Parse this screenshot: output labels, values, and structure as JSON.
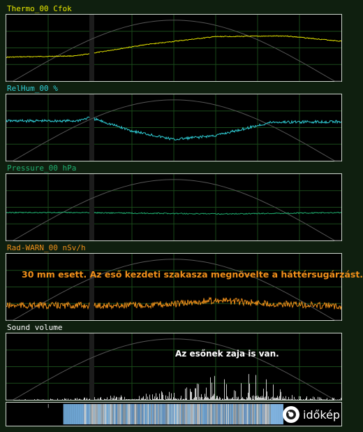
{
  "annotations": {
    "rad": "30 mm esett. Az eső kezdeti szakasza megnövelte a háttérsugárzást.",
    "sound": "Az esőnek zaja is van."
  },
  "logo": {
    "text": "időkép",
    "icon": "camera-lens-icon"
  },
  "colors": {
    "background": "#0f1f0f",
    "panel": "#000000",
    "grid": "#1a4a1a",
    "daylight_curve": "#555555",
    "gap_band": "#1c1c1c",
    "thermo": "#e8e800",
    "relhum": "#30d0d8",
    "pressure": "#20b070",
    "rad": "#f0901a",
    "sound": "#ffffff",
    "rad_annotation": "#f0901a",
    "sound_annotation": "#ffffff"
  },
  "chart_data": [
    {
      "id": "thermo",
      "type": "line",
      "title": "Thermo_00 Cfok",
      "x": [
        0,
        5,
        10,
        15,
        20,
        24
      ],
      "values": [
        0.64,
        0.62,
        0.45,
        0.33,
        0.32,
        0.4
      ],
      "noise": 0.006,
      "grid": true
    },
    {
      "id": "relhum",
      "type": "line",
      "title": "RelHum_00 %",
      "x": [
        0,
        5,
        6,
        9,
        12,
        15,
        19,
        24
      ],
      "values": [
        0.4,
        0.4,
        0.35,
        0.55,
        0.68,
        0.62,
        0.42,
        0.41
      ],
      "noise": 0.02,
      "grid": true
    },
    {
      "id": "pressure",
      "type": "line",
      "title": "Pressure_00 hPa",
      "x": [
        0,
        5,
        10,
        15,
        20,
        24
      ],
      "values": [
        0.58,
        0.58,
        0.59,
        0.6,
        0.59,
        0.58
      ],
      "noise": 0.008,
      "grid": true
    },
    {
      "id": "rad",
      "type": "line",
      "title": "Rad-WARN_00 nSv/h",
      "x": [
        0,
        5,
        8,
        12,
        15,
        18,
        20,
        24
      ],
      "values": [
        0.78,
        0.78,
        0.78,
        0.76,
        0.7,
        0.74,
        0.76,
        0.79
      ],
      "noise": 0.05,
      "grid": true
    },
    {
      "id": "sound",
      "type": "bar",
      "title": "Sound volume",
      "x": [
        0,
        5,
        10,
        13,
        15,
        16,
        17,
        18,
        20,
        24
      ],
      "values": [
        0.0,
        0.02,
        0.06,
        0.12,
        0.28,
        0.15,
        0.22,
        0.3,
        0.05,
        0.02
      ],
      "grid": true
    }
  ]
}
